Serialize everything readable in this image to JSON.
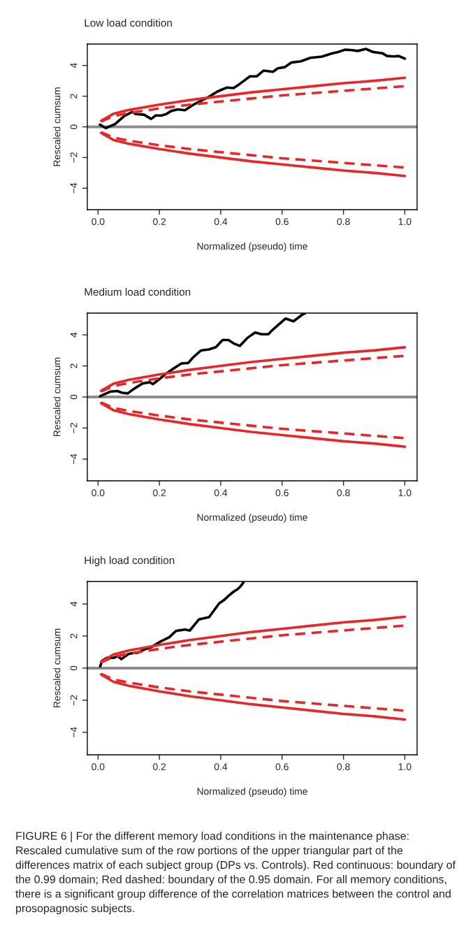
{
  "chart_data": [
    {
      "type": "line",
      "title": "Low load condition",
      "xlabel": "Normalized (pseudo) time",
      "ylabel": "Rescaled cumsum",
      "xlim": [
        -0.035,
        1.04
      ],
      "ylim": [
        -5.4,
        5.4
      ],
      "xticks": [
        {
          "value": 0,
          "label": "0.0"
        },
        {
          "value": 0.2,
          "label": "0.2"
        },
        {
          "value": 0.4,
          "label": "0.4"
        },
        {
          "value": 0.6,
          "label": "0.6"
        },
        {
          "value": 0.8,
          "label": "0.8"
        },
        {
          "value": 1,
          "label": "1.0"
        }
      ],
      "yticks": [
        -4,
        -2,
        0,
        2,
        4
      ],
      "grid": false,
      "ref_lines": [
        {
          "axis": "y",
          "value": 0,
          "color": "#8c8c8c"
        }
      ],
      "series": [
        {
          "color": "#000000",
          "line_style": "solid",
          "x": [
            0.006,
            0.025,
            0.055,
            0.086,
            0.112,
            0.123,
            0.15,
            0.173,
            0.188,
            0.207,
            0.222,
            0.237,
            0.26,
            0.283,
            0.313,
            0.336,
            0.358,
            0.389,
            0.419,
            0.442,
            0.464,
            0.495,
            0.517,
            0.54,
            0.57,
            0.586,
            0.608,
            0.631,
            0.661,
            0.692,
            0.73,
            0.76,
            0.782,
            0.805,
            0.828,
            0.847,
            0.873,
            0.896,
            0.927,
            0.942,
            0.964,
            0.98,
            1.0
          ],
          "values": [
            0.14,
            -0.08,
            0.18,
            0.71,
            0.98,
            0.83,
            0.79,
            0.52,
            0.74,
            0.74,
            0.83,
            1.02,
            1.14,
            1.08,
            1.47,
            1.7,
            1.92,
            2.3,
            2.56,
            2.53,
            2.83,
            3.29,
            3.29,
            3.67,
            3.59,
            3.82,
            3.89,
            4.2,
            4.27,
            4.5,
            4.58,
            4.77,
            4.88,
            5.03,
            5.0,
            4.95,
            5.08,
            4.88,
            4.8,
            4.62,
            4.59,
            4.62,
            4.45
          ]
        },
        {
          "color": "#e8262a",
          "line_style": "solid",
          "x": [
            0.01,
            0.05,
            0.1,
            0.2,
            0.3,
            0.4,
            0.5,
            0.6,
            0.7,
            0.8,
            0.9,
            1.0
          ],
          "values": [
            0.4,
            0.85,
            1.1,
            1.45,
            1.75,
            2.0,
            2.25,
            2.45,
            2.65,
            2.85,
            3.0,
            3.2
          ]
        },
        {
          "color": "#e8262a",
          "line_style": "solid",
          "x": [
            0.01,
            0.05,
            0.1,
            0.2,
            0.3,
            0.4,
            0.5,
            0.6,
            0.7,
            0.8,
            0.9,
            1.0
          ],
          "values": [
            -0.4,
            -0.85,
            -1.1,
            -1.45,
            -1.75,
            -2.0,
            -2.25,
            -2.45,
            -2.65,
            -2.85,
            -3.0,
            -3.2
          ]
        },
        {
          "color": "#e8262a",
          "line_style": "dashed",
          "x": [
            0.01,
            0.05,
            0.1,
            0.2,
            0.3,
            0.4,
            0.5,
            0.6,
            0.7,
            0.8,
            0.9,
            1.0
          ],
          "values": [
            0.35,
            0.7,
            0.9,
            1.2,
            1.45,
            1.65,
            1.85,
            2.05,
            2.2,
            2.35,
            2.5,
            2.65
          ]
        },
        {
          "color": "#e8262a",
          "line_style": "dashed",
          "x": [
            0.01,
            0.05,
            0.1,
            0.2,
            0.3,
            0.4,
            0.5,
            0.6,
            0.7,
            0.8,
            0.9,
            1.0
          ],
          "values": [
            -0.35,
            -0.7,
            -0.9,
            -1.2,
            -1.45,
            -1.65,
            -1.85,
            -2.05,
            -2.2,
            -2.35,
            -2.5,
            -2.65
          ]
        }
      ]
    },
    {
      "type": "line",
      "title": "Medium load condition",
      "xlabel": "Normalized (pseudo) time",
      "ylabel": "Rescaled cumsum",
      "xlim": [
        -0.035,
        1.04
      ],
      "ylim": [
        -5.4,
        5.4
      ],
      "xticks": [
        {
          "value": 0,
          "label": "0.0"
        },
        {
          "value": 0.2,
          "label": "0.2"
        },
        {
          "value": 0.4,
          "label": "0.4"
        },
        {
          "value": 0.6,
          "label": "0.6"
        },
        {
          "value": 0.8,
          "label": "0.8"
        },
        {
          "value": 1,
          "label": "1.0"
        }
      ],
      "yticks": [
        -4,
        -2,
        0,
        2,
        4
      ],
      "grid": false,
      "ref_lines": [
        {
          "axis": "y",
          "value": 0,
          "color": "#8c8c8c"
        }
      ],
      "series": [
        {
          "color": "#000000",
          "line_style": "solid",
          "x": [
            0.007,
            0.041,
            0.063,
            0.078,
            0.097,
            0.115,
            0.145,
            0.168,
            0.179,
            0.197,
            0.22,
            0.242,
            0.272,
            0.294,
            0.309,
            0.335,
            0.361,
            0.384,
            0.406,
            0.425,
            0.443,
            0.462,
            0.488,
            0.512,
            0.533,
            0.555,
            0.57,
            0.592,
            0.611,
            0.637,
            0.667,
            0.674
          ],
          "values": [
            0.05,
            0.35,
            0.38,
            0.27,
            0.23,
            0.5,
            0.87,
            0.95,
            0.83,
            1.1,
            1.48,
            1.78,
            2.16,
            2.19,
            2.53,
            2.99,
            3.06,
            3.21,
            3.67,
            3.67,
            3.44,
            3.29,
            3.82,
            4.15,
            4.04,
            4.04,
            4.34,
            4.72,
            5.05,
            4.87,
            5.32,
            5.37
          ]
        },
        {
          "color": "#e8262a",
          "line_style": "solid",
          "x": [
            0.01,
            0.05,
            0.1,
            0.2,
            0.3,
            0.4,
            0.5,
            0.6,
            0.7,
            0.8,
            0.9,
            1.0
          ],
          "values": [
            0.4,
            0.85,
            1.1,
            1.45,
            1.75,
            2.0,
            2.25,
            2.45,
            2.65,
            2.85,
            3.0,
            3.2
          ]
        },
        {
          "color": "#e8262a",
          "line_style": "solid",
          "x": [
            0.01,
            0.05,
            0.1,
            0.2,
            0.3,
            0.4,
            0.5,
            0.6,
            0.7,
            0.8,
            0.9,
            1.0
          ],
          "values": [
            -0.4,
            -0.85,
            -1.1,
            -1.45,
            -1.75,
            -2.0,
            -2.25,
            -2.45,
            -2.65,
            -2.85,
            -3.0,
            -3.2
          ]
        },
        {
          "color": "#e8262a",
          "line_style": "dashed",
          "x": [
            0.01,
            0.05,
            0.1,
            0.2,
            0.3,
            0.4,
            0.5,
            0.6,
            0.7,
            0.8,
            0.9,
            1.0
          ],
          "values": [
            0.35,
            0.7,
            0.9,
            1.2,
            1.45,
            1.65,
            1.85,
            2.05,
            2.2,
            2.35,
            2.5,
            2.65
          ]
        },
        {
          "color": "#e8262a",
          "line_style": "dashed",
          "x": [
            0.01,
            0.05,
            0.1,
            0.2,
            0.3,
            0.4,
            0.5,
            0.6,
            0.7,
            0.8,
            0.9,
            1.0
          ],
          "values": [
            -0.35,
            -0.7,
            -0.9,
            -1.2,
            -1.45,
            -1.65,
            -1.85,
            -2.05,
            -2.2,
            -2.35,
            -2.5,
            -2.65
          ]
        }
      ]
    },
    {
      "type": "line",
      "title": "High load condition",
      "xlabel": "Normalized (pseudo) time",
      "ylabel": "Rescaled cumsum",
      "xlim": [
        -0.035,
        1.04
      ],
      "ylim": [
        -5.4,
        5.4
      ],
      "xticks": [
        {
          "value": 0,
          "label": "0.0"
        },
        {
          "value": 0.2,
          "label": "0.2"
        },
        {
          "value": 0.4,
          "label": "0.4"
        },
        {
          "value": 0.6,
          "label": "0.6"
        },
        {
          "value": 0.8,
          "label": "0.8"
        },
        {
          "value": 1,
          "label": "1.0"
        }
      ],
      "yticks": [
        -4,
        -2,
        0,
        2,
        4
      ],
      "grid": false,
      "ref_lines": [
        {
          "axis": "y",
          "value": 0,
          "color": "#8c8c8c"
        }
      ],
      "annotations": [
        "FIGURE 6 | For the different memory load conditions in the maintenance phase: Rescaled cumulative sum of the row portions of the upper triangular part of the differences matrix of each subject group (DPs vs. Controls). Red continuous: boundary of the 0.99 domain; Red dashed: boundary of the 0.95 domain. For all memory conditions, there is a significant group difference of the correlation matrices between the control and prosopagnosic subjects."
      ],
      "series": [
        {
          "color": "#000000",
          "line_style": "solid",
          "x": [
            0.007,
            0.013,
            0.028,
            0.05,
            0.065,
            0.076,
            0.099,
            0.117,
            0.128,
            0.151,
            0.173,
            0.203,
            0.232,
            0.254,
            0.284,
            0.299,
            0.329,
            0.362,
            0.395,
            0.41,
            0.425,
            0.443,
            0.455,
            0.466,
            0.474
          ],
          "values": [
            0.11,
            0.46,
            0.64,
            0.64,
            0.74,
            0.56,
            0.88,
            0.95,
            0.95,
            1.16,
            1.3,
            1.65,
            1.92,
            2.32,
            2.41,
            2.34,
            3.04,
            3.18,
            4.04,
            4.23,
            4.5,
            4.78,
            4.92,
            5.13,
            5.35
          ]
        },
        {
          "color": "#e8262a",
          "line_style": "solid",
          "x": [
            0.01,
            0.05,
            0.1,
            0.2,
            0.3,
            0.4,
            0.5,
            0.6,
            0.7,
            0.8,
            0.9,
            1.0
          ],
          "values": [
            0.4,
            0.85,
            1.1,
            1.45,
            1.75,
            2.0,
            2.25,
            2.45,
            2.65,
            2.85,
            3.0,
            3.2
          ]
        },
        {
          "color": "#e8262a",
          "line_style": "solid",
          "x": [
            0.01,
            0.05,
            0.1,
            0.2,
            0.3,
            0.4,
            0.5,
            0.6,
            0.7,
            0.8,
            0.9,
            1.0
          ],
          "values": [
            -0.4,
            -0.85,
            -1.1,
            -1.45,
            -1.75,
            -2.0,
            -2.25,
            -2.45,
            -2.65,
            -2.85,
            -3.0,
            -3.2
          ]
        },
        {
          "color": "#e8262a",
          "line_style": "dashed",
          "x": [
            0.01,
            0.05,
            0.1,
            0.2,
            0.3,
            0.4,
            0.5,
            0.6,
            0.7,
            0.8,
            0.9,
            1.0
          ],
          "values": [
            0.35,
            0.7,
            0.9,
            1.2,
            1.45,
            1.65,
            1.85,
            2.05,
            2.2,
            2.35,
            2.5,
            2.65
          ]
        },
        {
          "color": "#e8262a",
          "line_style": "dashed",
          "x": [
            0.01,
            0.05,
            0.1,
            0.2,
            0.3,
            0.4,
            0.5,
            0.6,
            0.7,
            0.8,
            0.9,
            1.0
          ],
          "values": [
            -0.35,
            -0.7,
            -0.9,
            -1.2,
            -1.45,
            -1.65,
            -1.85,
            -2.05,
            -2.2,
            -2.35,
            -2.5,
            -2.65
          ]
        }
      ]
    }
  ]
}
